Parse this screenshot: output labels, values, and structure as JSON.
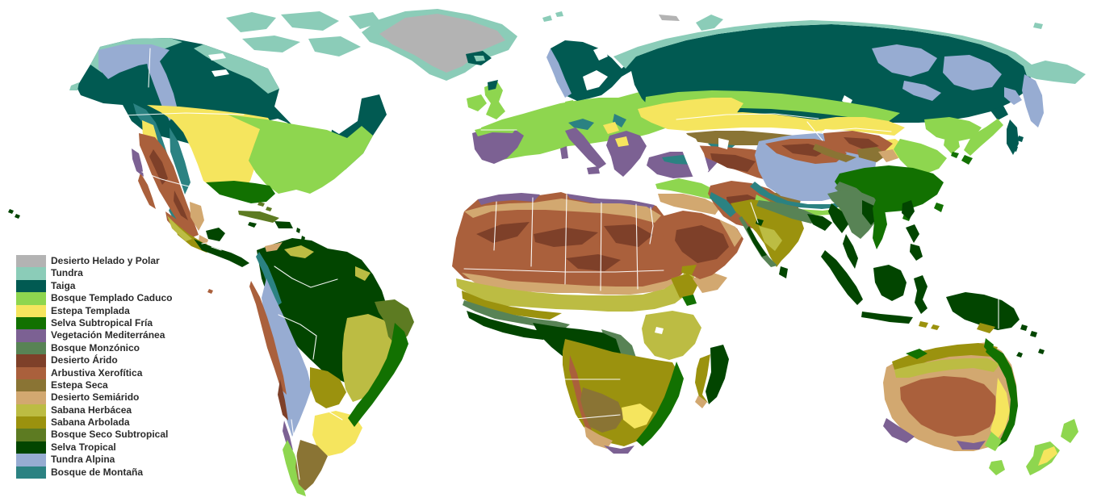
{
  "map": {
    "ocean_color": "#ffffff",
    "border_color": "#ffffff",
    "legend_text_color": "#2b2b2b"
  },
  "legend": {
    "items": [
      {
        "id": "desierto-helado-y-polar",
        "label": "Desierto Helado y Polar",
        "color": "#b3b3b3"
      },
      {
        "id": "tundra",
        "label": "Tundra",
        "color": "#8bccb8"
      },
      {
        "id": "taiga",
        "label": "Taiga",
        "color": "#015a52"
      },
      {
        "id": "bosque-templado-caduco",
        "label": "Bosque Templado Caduco",
        "color": "#8ed64f"
      },
      {
        "id": "estepa-templada",
        "label": "Estepa Templada",
        "color": "#f5e55e"
      },
      {
        "id": "selva-subtropical-fria",
        "label": "Selva Subtropical Fría",
        "color": "#127101"
      },
      {
        "id": "vegetacion-mediterranea",
        "label": "Vegetación Mediterránea",
        "color": "#7c6193"
      },
      {
        "id": "bosque-monzonico",
        "label": "Bosque Monzónico",
        "color": "#588355"
      },
      {
        "id": "desierto-arido",
        "label": "Desierto Árido",
        "color": "#7e4029"
      },
      {
        "id": "arbustiva-xerofitica",
        "label": "Arbustiva Xerofítica",
        "color": "#aa603c"
      },
      {
        "id": "estepa-seca",
        "label": "Estepa Seca",
        "color": "#8a7434"
      },
      {
        "id": "desierto-semiarido",
        "label": "Desierto Semiárido",
        "color": "#d2a870"
      },
      {
        "id": "sabana-herbacea",
        "label": "Sabana Herbácea",
        "color": "#bcbc43"
      },
      {
        "id": "sabana-arbolada",
        "label": "Sabana Arbolada",
        "color": "#9b920e"
      },
      {
        "id": "bosque-seco-subtropical",
        "label": "Bosque Seco Subtropical",
        "color": "#5d7b22"
      },
      {
        "id": "selva-tropical",
        "label": "Selva Tropical",
        "color": "#024500"
      },
      {
        "id": "tundra-alpina",
        "label": "Tundra Alpina",
        "color": "#97acd2"
      },
      {
        "id": "bosque-de-montana",
        "label": "Bosque de Montaña",
        "color": "#2b8282"
      }
    ]
  }
}
